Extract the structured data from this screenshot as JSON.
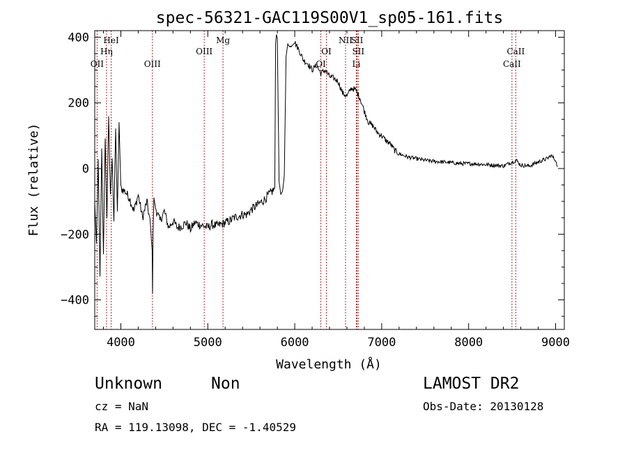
{
  "chart_data": {
    "type": "line",
    "title": "spec-56321-GAC119S00V1_sp05-161.fits",
    "xlabel": "Wavelength (Å)",
    "ylabel": "Flux (relative)",
    "xlim": [
      3700,
      9100
    ],
    "ylim": [
      -490,
      420
    ],
    "xticks": [
      4000,
      5000,
      6000,
      7000,
      8000,
      9000
    ],
    "yticks": [
      -400,
      -200,
      0,
      200,
      400
    ],
    "grid": false,
    "line_color": "#000000",
    "marker_color": "#b22222",
    "lines": [
      {
        "label": "OII",
        "x": 3727,
        "row": 3
      },
      {
        "label": "Hη",
        "x": 3835,
        "row": 2
      },
      {
        "label": "HeI",
        "x": 3889,
        "row": 1
      },
      {
        "label": "OIII",
        "x": 4363,
        "row": 3
      },
      {
        "label": "OIII",
        "x": 4959,
        "row": 2
      },
      {
        "label": "Mg",
        "x": 5175,
        "row": 1
      },
      {
        "label": "OI",
        "x": 6300,
        "row": 3
      },
      {
        "label": "OI",
        "x": 6364,
        "row": 2
      },
      {
        "label": "NII",
        "x": 6584,
        "row": 1
      },
      {
        "label": "SII",
        "x": 6717,
        "row": 1
      },
      {
        "label": "SII",
        "x": 6731,
        "row": 2
      },
      {
        "label": "Li",
        "x": 6708,
        "row": 3
      },
      {
        "label": "CaII",
        "x": 8498,
        "row": 3
      },
      {
        "label": "CaII",
        "x": 8542,
        "row": 2
      }
    ],
    "series": [
      {
        "x": [
          3700,
          3720,
          3740,
          3760,
          3780,
          3800,
          3820,
          3840,
          3860,
          3880,
          3900,
          3920,
          3940,
          3960,
          3980,
          4000,
          4050,
          4100,
          4150,
          4200,
          4250,
          4300,
          4340,
          4360,
          4365,
          4370,
          4380,
          4400,
          4450,
          4500,
          4550,
          4600,
          4650,
          4700,
          4750,
          4800,
          4850,
          4900,
          4950,
          5000,
          5050,
          5100,
          5150,
          5200,
          5250,
          5300,
          5350,
          5400,
          5450,
          5500,
          5550,
          5600,
          5650,
          5700,
          5740,
          5770,
          5780,
          5790,
          5800,
          5820,
          5840,
          5860,
          5880,
          5900,
          5920,
          5950,
          6000,
          6050,
          6100,
          6150,
          6200,
          6250,
          6300,
          6350,
          6400,
          6450,
          6500,
          6550,
          6600,
          6650,
          6700,
          6750,
          6800,
          6850,
          6900,
          6950,
          7000,
          7050,
          7100,
          7150,
          7200,
          7250,
          7300,
          7400,
          7500,
          7600,
          7700,
          7800,
          7900,
          8000,
          8100,
          8200,
          8300,
          8400,
          8500,
          8550,
          8600,
          8700,
          8800,
          8900,
          8950,
          9000,
          9020
        ],
        "y": [
          -100,
          -230,
          30,
          -330,
          60,
          -260,
          90,
          -150,
          160,
          -80,
          30,
          -160,
          120,
          -130,
          140,
          -60,
          -70,
          -90,
          -130,
          -80,
          -150,
          -100,
          -170,
          -250,
          -380,
          -200,
          -90,
          -120,
          -160,
          -130,
          -180,
          -160,
          -180,
          -175,
          -165,
          -185,
          -165,
          -170,
          -175,
          -180,
          -170,
          -175,
          -170,
          -165,
          -160,
          -150,
          -145,
          -140,
          -140,
          -125,
          -115,
          -105,
          -95,
          -80,
          -70,
          -60,
          380,
          410,
          395,
          -40,
          -80,
          -70,
          -20,
          340,
          380,
          370,
          385,
          360,
          330,
          320,
          300,
          315,
          290,
          300,
          280,
          275,
          265,
          230,
          220,
          245,
          240,
          215,
          175,
          140,
          130,
          110,
          100,
          85,
          75,
          55,
          45,
          40,
          35,
          30,
          25,
          22,
          20,
          18,
          15,
          15,
          14,
          12,
          10,
          8,
          20,
          25,
          10,
          8,
          20,
          30,
          40,
          25,
          5
        ]
      }
    ]
  },
  "info": {
    "object_class": "Unknown",
    "subclass": "Non",
    "survey": "LAMOST DR2",
    "cz": "cz = NaN",
    "obs_date": "Obs-Date: 20130128",
    "coords": "RA = 119.13098, DEC =  -1.40529"
  }
}
